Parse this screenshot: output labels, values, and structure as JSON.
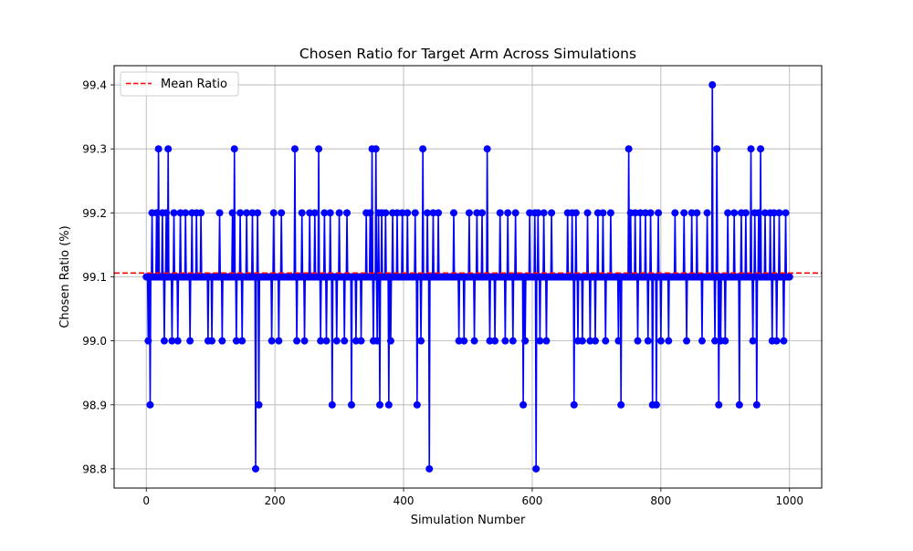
{
  "chart_data": {
    "type": "line",
    "title": "Chosen Ratio for Target Arm Across Simulations",
    "xlabel": "Simulation Number",
    "ylabel": "Chosen Ratio (%)",
    "xlim": [
      -50,
      1050
    ],
    "ylim": [
      98.77,
      99.43
    ],
    "xticks": [
      0,
      200,
      400,
      600,
      800,
      1000
    ],
    "yticks": [
      98.8,
      98.9,
      99.0,
      99.1,
      99.2,
      99.3,
      99.4
    ],
    "grid": true,
    "legend_position": "top-left",
    "line_color": "#0000ff",
    "mean_color": "#ff0000",
    "series": [
      {
        "name": "",
        "style": "line-with-markers",
        "baseline": 99.1,
        "points": [
          [
            0,
            99.1
          ],
          [
            3,
            99.0
          ],
          [
            6,
            98.9
          ],
          [
            9,
            99.2
          ],
          [
            13,
            99.1
          ],
          [
            16,
            99.2
          ],
          [
            19,
            99.3
          ],
          [
            22,
            99.1
          ],
          [
            25,
            99.2
          ],
          [
            28,
            99.0
          ],
          [
            31,
            99.2
          ],
          [
            34,
            99.3
          ],
          [
            37,
            99.1
          ],
          [
            40,
            99.0
          ],
          [
            43,
            99.2
          ],
          [
            46,
            99.1
          ],
          [
            49,
            99.0
          ],
          [
            53,
            99.2
          ],
          [
            57,
            99.1
          ],
          [
            61,
            99.2
          ],
          [
            65,
            99.1
          ],
          [
            68,
            99.0
          ],
          [
            71,
            99.2
          ],
          [
            74,
            99.1
          ],
          [
            78,
            99.2
          ],
          [
            82,
            99.1
          ],
          [
            85,
            99.2
          ],
          [
            88,
            99.1
          ],
          [
            92,
            99.1
          ],
          [
            96,
            99.0
          ],
          [
            99,
            99.1
          ],
          [
            102,
            99.0
          ],
          [
            106,
            99.1
          ],
          [
            110,
            99.1
          ],
          [
            114,
            99.2
          ],
          [
            118,
            99.0
          ],
          [
            122,
            99.1
          ],
          [
            126,
            99.1
          ],
          [
            130,
            99.1
          ],
          [
            134,
            99.2
          ],
          [
            137,
            99.3
          ],
          [
            140,
            99.0
          ],
          [
            143,
            99.1
          ],
          [
            146,
            99.2
          ],
          [
            149,
            99.0
          ],
          [
            152,
            99.1
          ],
          [
            156,
            99.2
          ],
          [
            160,
            99.1
          ],
          [
            165,
            99.2
          ],
          [
            168,
            99.1
          ],
          [
            170,
            98.8
          ],
          [
            173,
            99.2
          ],
          [
            175,
            98.9
          ],
          [
            178,
            99.1
          ],
          [
            184,
            99.1
          ],
          [
            190,
            99.1
          ],
          [
            195,
            99.0
          ],
          [
            198,
            99.2
          ],
          [
            202,
            99.1
          ],
          [
            206,
            99.0
          ],
          [
            210,
            99.2
          ],
          [
            214,
            99.1
          ],
          [
            218,
            99.1
          ],
          [
            222,
            99.1
          ],
          [
            228,
            99.1
          ],
          [
            231,
            99.3
          ],
          [
            234,
            99.0
          ],
          [
            238,
            99.1
          ],
          [
            242,
            99.2
          ],
          [
            246,
            99.0
          ],
          [
            250,
            99.1
          ],
          [
            254,
            99.2
          ],
          [
            258,
            99.1
          ],
          [
            262,
            99.2
          ],
          [
            265,
            99.1
          ],
          [
            268,
            99.3
          ],
          [
            271,
            99.0
          ],
          [
            274,
            99.1
          ],
          [
            277,
            99.2
          ],
          [
            280,
            99.0
          ],
          [
            283,
            99.1
          ],
          [
            286,
            99.2
          ],
          [
            289,
            98.9
          ],
          [
            292,
            99.1
          ],
          [
            296,
            99.0
          ],
          [
            300,
            99.2
          ],
          [
            304,
            99.1
          ],
          [
            308,
            99.0
          ],
          [
            312,
            99.2
          ],
          [
            316,
            99.1
          ],
          [
            319,
            98.9
          ],
          [
            322,
            99.1
          ],
          [
            326,
            99.0
          ],
          [
            330,
            99.1
          ],
          [
            334,
            99.0
          ],
          [
            338,
            99.1
          ],
          [
            342,
            99.2
          ],
          [
            345,
            99.1
          ],
          [
            348,
            99.2
          ],
          [
            351,
            99.3
          ],
          [
            353,
            99.0
          ],
          [
            355,
            99.1
          ],
          [
            357,
            99.3
          ],
          [
            359,
            99.0
          ],
          [
            361,
            99.2
          ],
          [
            363,
            98.9
          ],
          [
            366,
            99.2
          ],
          [
            369,
            99.1
          ],
          [
            372,
            99.2
          ],
          [
            375,
            99.1
          ],
          [
            377,
            98.9
          ],
          [
            380,
            99.0
          ],
          [
            383,
            99.2
          ],
          [
            386,
            99.1
          ],
          [
            390,
            99.2
          ],
          [
            394,
            99.1
          ],
          [
            398,
            99.2
          ],
          [
            402,
            99.1
          ],
          [
            406,
            99.2
          ],
          [
            410,
            99.1
          ],
          [
            414,
            99.1
          ],
          [
            418,
            99.2
          ],
          [
            421,
            98.9
          ],
          [
            424,
            99.1
          ],
          [
            427,
            99.0
          ],
          [
            430,
            99.3
          ],
          [
            434,
            99.1
          ],
          [
            437,
            99.2
          ],
          [
            440,
            98.8
          ],
          [
            443,
            99.1
          ],
          [
            446,
            99.2
          ],
          [
            450,
            99.1
          ],
          [
            454,
            99.2
          ],
          [
            458,
            99.1
          ],
          [
            462,
            99.1
          ],
          [
            470,
            99.1
          ],
          [
            478,
            99.2
          ],
          [
            482,
            99.1
          ],
          [
            486,
            99.0
          ],
          [
            490,
            99.1
          ],
          [
            494,
            99.0
          ],
          [
            498,
            99.1
          ],
          [
            502,
            99.2
          ],
          [
            506,
            99.1
          ],
          [
            510,
            99.0
          ],
          [
            514,
            99.2
          ],
          [
            518,
            99.1
          ],
          [
            522,
            99.2
          ],
          [
            526,
            99.1
          ],
          [
            530,
            99.3
          ],
          [
            534,
            99.0
          ],
          [
            538,
            99.1
          ],
          [
            542,
            99.0
          ],
          [
            546,
            99.1
          ],
          [
            550,
            99.2
          ],
          [
            554,
            99.1
          ],
          [
            558,
            99.0
          ],
          [
            562,
            99.2
          ],
          [
            566,
            99.1
          ],
          [
            570,
            99.0
          ],
          [
            574,
            99.2
          ],
          [
            578,
            99.1
          ],
          [
            582,
            99.1
          ],
          [
            586,
            98.9
          ],
          [
            589,
            99.0
          ],
          [
            592,
            99.1
          ],
          [
            596,
            99.2
          ],
          [
            600,
            99.1
          ],
          [
            604,
            99.2
          ],
          [
            606,
            98.8
          ],
          [
            609,
            99.2
          ],
          [
            612,
            99.0
          ],
          [
            615,
            99.1
          ],
          [
            618,
            99.2
          ],
          [
            622,
            99.0
          ],
          [
            626,
            99.1
          ],
          [
            630,
            99.2
          ],
          [
            634,
            99.1
          ],
          [
            640,
            99.1
          ],
          [
            648,
            99.1
          ],
          [
            655,
            99.2
          ],
          [
            658,
            99.1
          ],
          [
            662,
            99.2
          ],
          [
            665,
            98.9
          ],
          [
            668,
            99.2
          ],
          [
            671,
            99.0
          ],
          [
            674,
            99.1
          ],
          [
            678,
            99.0
          ],
          [
            682,
            99.1
          ],
          [
            686,
            99.2
          ],
          [
            690,
            99.0
          ],
          [
            694,
            99.1
          ],
          [
            698,
            99.0
          ],
          [
            702,
            99.2
          ],
          [
            706,
            99.1
          ],
          [
            710,
            99.2
          ],
          [
            714,
            99.0
          ],
          [
            718,
            99.1
          ],
          [
            722,
            99.2
          ],
          [
            726,
            99.1
          ],
          [
            730,
            99.1
          ],
          [
            734,
            99.0
          ],
          [
            738,
            98.9
          ],
          [
            742,
            99.1
          ],
          [
            746,
            99.1
          ],
          [
            750,
            99.3
          ],
          [
            753,
            99.2
          ],
          [
            756,
            99.1
          ],
          [
            760,
            99.2
          ],
          [
            764,
            99.0
          ],
          [
            768,
            99.2
          ],
          [
            772,
            99.1
          ],
          [
            776,
            99.2
          ],
          [
            780,
            99.0
          ],
          [
            784,
            99.2
          ],
          [
            787,
            98.9
          ],
          [
            790,
            99.1
          ],
          [
            793,
            98.9
          ],
          [
            796,
            99.2
          ],
          [
            800,
            99.0
          ],
          [
            804,
            99.1
          ],
          [
            808,
            99.1
          ],
          [
            812,
            99.0
          ],
          [
            816,
            99.1
          ],
          [
            822,
            99.2
          ],
          [
            826,
            99.1
          ],
          [
            830,
            99.1
          ],
          [
            836,
            99.2
          ],
          [
            840,
            99.0
          ],
          [
            844,
            99.1
          ],
          [
            848,
            99.2
          ],
          [
            852,
            99.1
          ],
          [
            856,
            99.2
          ],
          [
            860,
            99.1
          ],
          [
            864,
            99.0
          ],
          [
            868,
            99.1
          ],
          [
            872,
            99.2
          ],
          [
            876,
            99.1
          ],
          [
            880,
            99.4
          ],
          [
            884,
            99.0
          ],
          [
            887,
            99.3
          ],
          [
            890,
            98.9
          ],
          [
            893,
            99.0
          ],
          [
            896,
            99.1
          ],
          [
            900,
            99.0
          ],
          [
            904,
            99.2
          ],
          [
            908,
            99.1
          ],
          [
            914,
            99.2
          ],
          [
            918,
            99.1
          ],
          [
            922,
            98.9
          ],
          [
            925,
            99.2
          ],
          [
            928,
            99.1
          ],
          [
            932,
            99.2
          ],
          [
            936,
            99.1
          ],
          [
            940,
            99.3
          ],
          [
            943,
            99.0
          ],
          [
            946,
            99.2
          ],
          [
            949,
            98.9
          ],
          [
            952,
            99.2
          ],
          [
            955,
            99.3
          ],
          [
            958,
            99.1
          ],
          [
            962,
            99.2
          ],
          [
            966,
            99.1
          ],
          [
            970,
            99.2
          ],
          [
            973,
            99.0
          ],
          [
            976,
            99.2
          ],
          [
            980,
            99.0
          ],
          [
            984,
            99.2
          ],
          [
            988,
            99.1
          ],
          [
            991,
            99.0
          ],
          [
            994,
            99.2
          ],
          [
            998,
            99.1
          ]
        ]
      }
    ],
    "mean_line": {
      "label": "Mean Ratio",
      "value": 99.106,
      "style": "dashed"
    }
  }
}
